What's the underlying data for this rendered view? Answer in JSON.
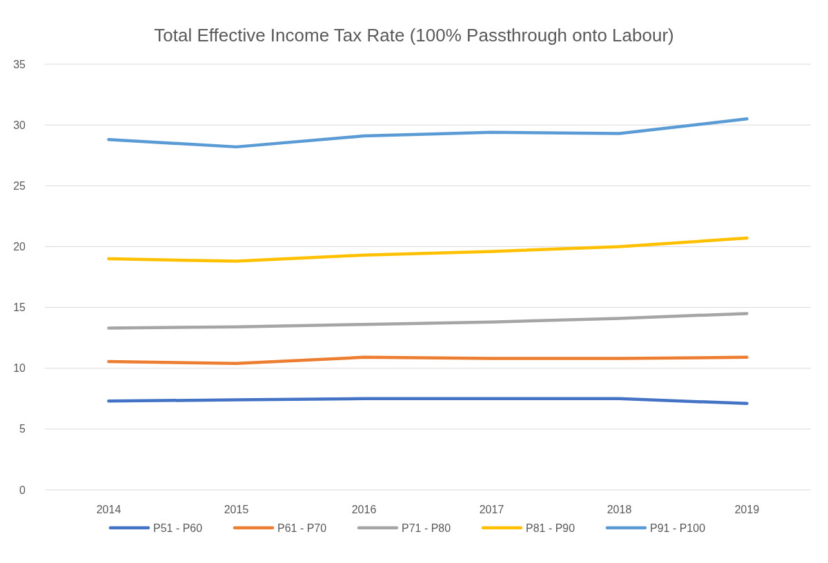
{
  "chart_data": {
    "type": "line",
    "title": "Total Effective Income Tax Rate (100% Passthrough onto Labour)",
    "categories": [
      "2014",
      "2015",
      "2016",
      "2017",
      "2018",
      "2019"
    ],
    "series": [
      {
        "name": "P51 - P60",
        "color": "#4472c4",
        "values": [
          7.3,
          7.4,
          7.5,
          7.5,
          7.5,
          7.1
        ]
      },
      {
        "name": "P61 - P70",
        "color": "#ed7d31",
        "values": [
          10.55,
          10.4,
          10.9,
          10.8,
          10.8,
          10.9
        ]
      },
      {
        "name": "P71 - P80",
        "color": "#a5a5a5",
        "values": [
          13.3,
          13.4,
          13.6,
          13.8,
          14.1,
          14.5
        ]
      },
      {
        "name": "P81 - P90",
        "color": "#ffc000",
        "values": [
          19.0,
          18.8,
          19.3,
          19.6,
          20.0,
          20.7
        ]
      },
      {
        "name": "P91 - P100",
        "color": "#5b9bd5",
        "values": [
          28.8,
          28.2,
          29.1,
          29.4,
          29.3,
          30.5
        ]
      }
    ],
    "ylim": [
      0,
      35
    ],
    "yticks": [
      0,
      5,
      10,
      15,
      20,
      25,
      30,
      35
    ],
    "grid": "y",
    "legend": "bottom",
    "marker": "none",
    "line_style": "solid"
  }
}
